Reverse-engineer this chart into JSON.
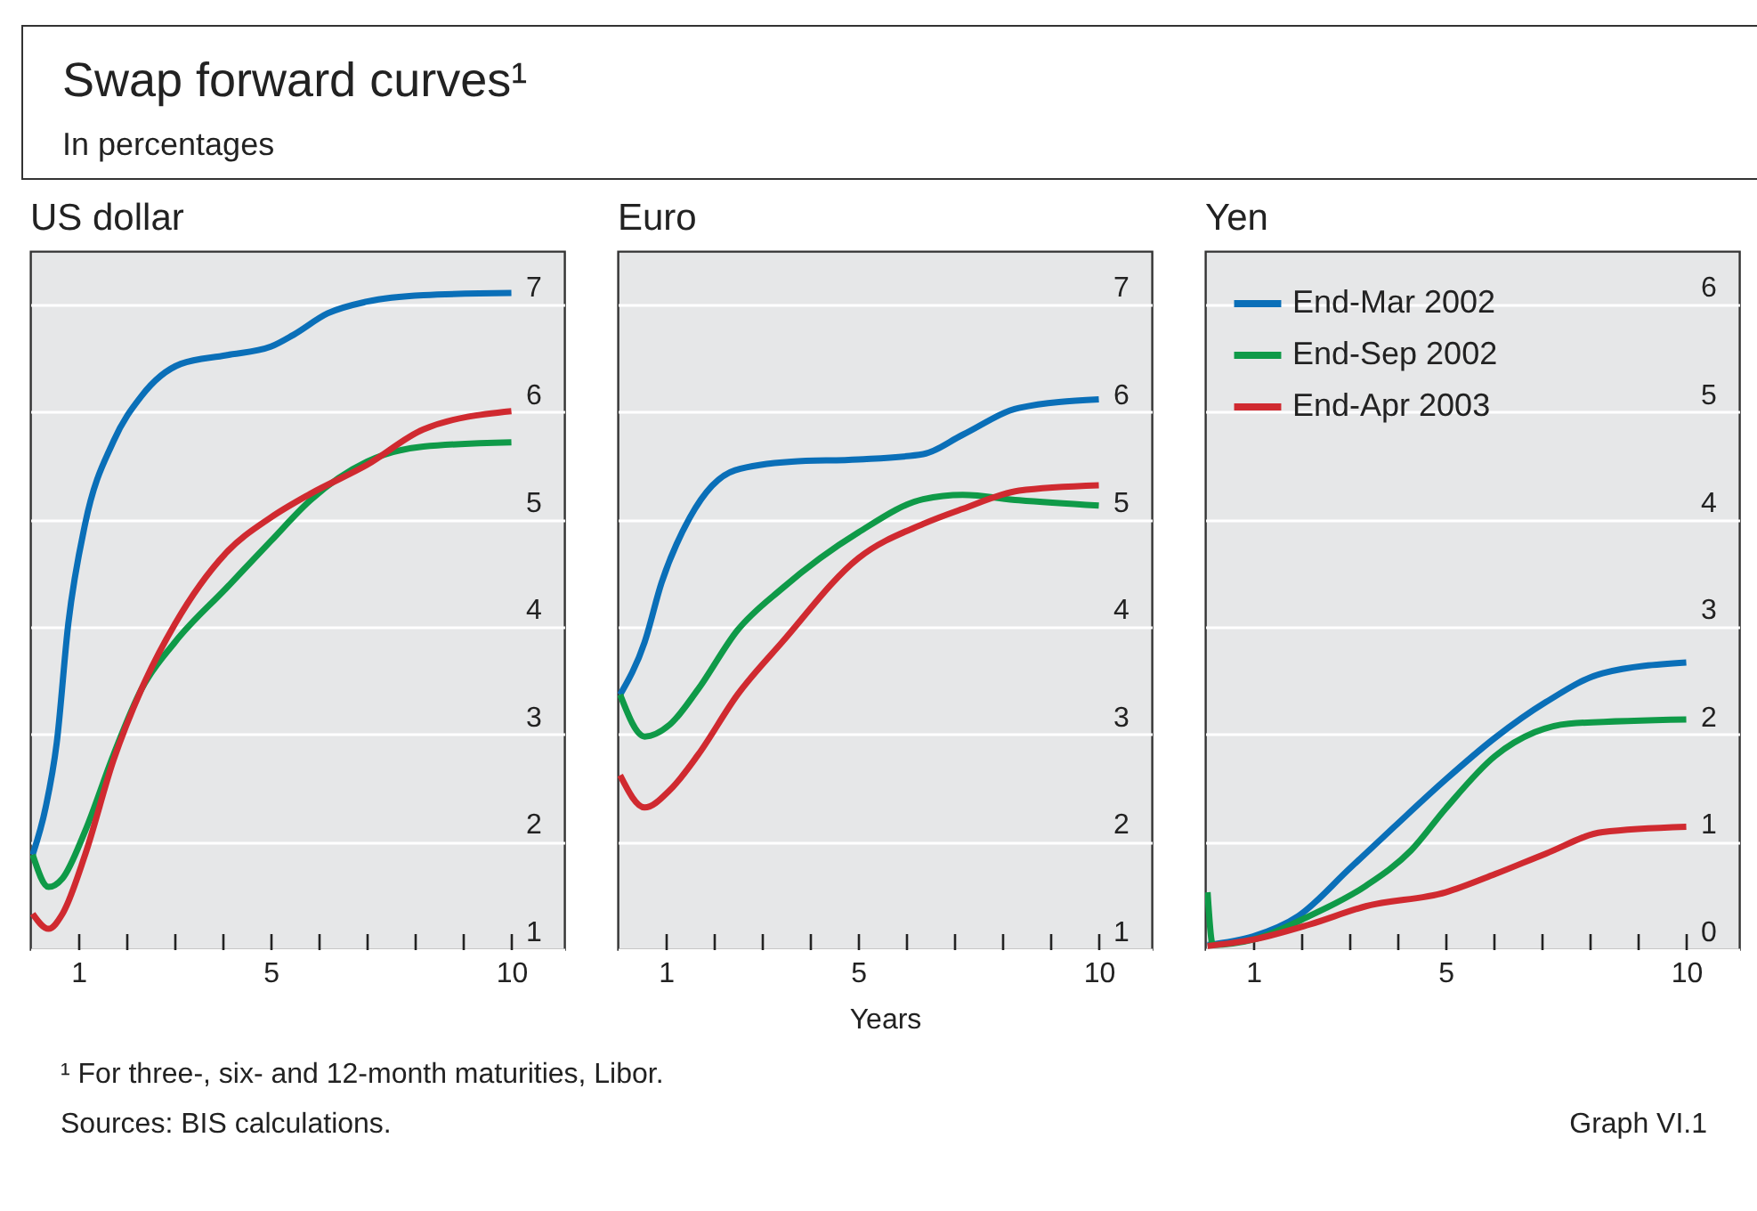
{
  "chart_data": [
    {
      "type": "other",
      "title": "Swap forward curves¹",
      "subtitle": "In percentages"
    },
    {
      "type": "line",
      "title": "US dollar",
      "xlim": [
        0,
        11.1
      ],
      "ylim": [
        1,
        7.5
      ],
      "xticks": [
        1,
        {
          "value": 2,
          "label": null
        },
        {
          "value": 3,
          "label": null
        },
        {
          "value": 4,
          "label": null
        },
        5,
        {
          "value": 6,
          "label": null
        },
        {
          "value": 7,
          "label": null
        },
        {
          "value": 8,
          "label": null
        },
        {
          "value": 9,
          "label": null
        },
        10
      ],
      "yticks": [
        1,
        2,
        3,
        4,
        5,
        6,
        7
      ],
      "grid": "y",
      "series": [
        {
          "color": "#0a6fb8",
          "x": [
            0.05,
            0.32,
            0.55,
            0.79,
            1.14,
            1.73,
            2.31,
            3.13,
            4.07,
            5,
            5.47,
            6.18,
            7,
            8.17,
            10
          ],
          "values": [
            1.88,
            2.32,
            2.92,
            4.03,
            4.96,
            5.73,
            6.15,
            6.45,
            6.53,
            6.61,
            6.72,
            6.92,
            7.03,
            7.09,
            7.11
          ]
        },
        {
          "color": "#0f9a48",
          "x": [
            0.05,
            0.38,
            0.67,
            1.14,
            1.73,
            2.31,
            3.01,
            4.07,
            5,
            5.82,
            7,
            8.17,
            10
          ],
          "values": [
            1.88,
            1.58,
            1.66,
            2.1,
            2.81,
            3.42,
            3.86,
            4.36,
            4.8,
            5.18,
            5.54,
            5.68,
            5.72
          ]
        },
        {
          "color": "#d02a30",
          "x": [
            0.05,
            0.38,
            0.67,
            1.14,
            1.73,
            2.31,
            3.01,
            4.07,
            5,
            5.82,
            7,
            8.17,
            10
          ],
          "values": [
            1.33,
            1.19,
            1.33,
            1.88,
            2.76,
            3.42,
            4.03,
            4.69,
            5.02,
            5.24,
            5.51,
            5.84,
            6.01
          ]
        }
      ]
    },
    {
      "type": "line",
      "title": "Euro",
      "xlabel": "Years",
      "xlim": [
        0,
        11.1
      ],
      "ylim": [
        1,
        7.5
      ],
      "xticks": [
        1,
        {
          "value": 2,
          "label": null
        },
        {
          "value": 3,
          "label": null
        },
        {
          "value": 4,
          "label": null
        },
        5,
        {
          "value": 6,
          "label": null
        },
        {
          "value": 7,
          "label": null
        },
        {
          "value": 8,
          "label": null
        },
        {
          "value": 9,
          "label": null
        },
        10
      ],
      "yticks": [
        1,
        2,
        3,
        4,
        5,
        6,
        7
      ],
      "grid": "y",
      "series": [
        {
          "color": "#0a6fb8",
          "x": [
            0.05,
            0.56,
            0.91,
            1.5,
            2.44,
            3.61,
            5,
            6.35,
            7.17,
            8.34,
            10
          ],
          "values": [
            3.37,
            3.86,
            4.41,
            5.02,
            5.46,
            5.54,
            5.56,
            5.61,
            5.79,
            6.04,
            6.12
          ]
        },
        {
          "color": "#0f9a48",
          "x": [
            0.05,
            0.56,
            1.08,
            1.67,
            2.49,
            3.42,
            5,
            6.35,
            7.17,
            8.34,
            10
          ],
          "values": [
            3.37,
            2.98,
            3.09,
            3.42,
            3.97,
            4.36,
            4.88,
            5.19,
            5.23,
            5.18,
            5.13
          ]
        },
        {
          "color": "#d02a30",
          "x": [
            0.05,
            0.56,
            1.08,
            1.67,
            2.49,
            3.42,
            5,
            6.35,
            7.17,
            8.34,
            10
          ],
          "values": [
            2.62,
            2.32,
            2.48,
            2.81,
            3.37,
            3.86,
            4.64,
            4.96,
            5.1,
            5.27,
            5.32
          ]
        }
      ]
    },
    {
      "type": "line",
      "title": "Yen",
      "xlim": [
        0,
        11.1
      ],
      "ylim": [
        0,
        6.5
      ],
      "xticks": [
        1,
        {
          "value": 2,
          "label": null
        },
        {
          "value": 3,
          "label": null
        },
        {
          "value": 4,
          "label": null
        },
        5,
        {
          "value": 6,
          "label": null
        },
        {
          "value": 7,
          "label": null
        },
        {
          "value": 8,
          "label": null
        },
        {
          "value": 9,
          "label": null
        },
        10
      ],
      "yticks": [
        0,
        1,
        2,
        3,
        4,
        5,
        6
      ],
      "grid": "y",
      "legend": "top left",
      "series": [
        {
          "name": "End-Mar 2002",
          "color": "#0a6fb8",
          "x": [
            0.05,
            1,
            1.94,
            3,
            3.93,
            5,
            6.03,
            7.08,
            8.26,
            10
          ],
          "values": [
            0.04,
            0.12,
            0.31,
            0.75,
            1.14,
            1.58,
            1.97,
            2.3,
            2.57,
            2.67
          ]
        },
        {
          "name": "End-Sep 2002",
          "color": "#0f9a48",
          "x": [
            0.05,
            0.16,
            1,
            2.17,
            3.34,
            4.28,
            5,
            6.03,
            6.85,
            7.56,
            10
          ],
          "values": [
            0.53,
            0.04,
            0.09,
            0.31,
            0.59,
            0.92,
            1.31,
            1.8,
            2.02,
            2.1,
            2.14
          ]
        },
        {
          "name": "End-Apr 2003",
          "color": "#d02a30",
          "x": [
            0.05,
            1,
            2.17,
            3.34,
            5,
            6.03,
            7.08,
            8.26,
            10
          ],
          "values": [
            0.03,
            0.09,
            0.23,
            0.4,
            0.53,
            0.7,
            0.89,
            1.09,
            1.14
          ]
        }
      ]
    },
    {
      "type": "other",
      "annotations": [
        "¹ For three-, six- and 12-month maturities, Libor.",
        "Sources: BIS calculations.",
        "Graph VI.1"
      ]
    }
  ]
}
